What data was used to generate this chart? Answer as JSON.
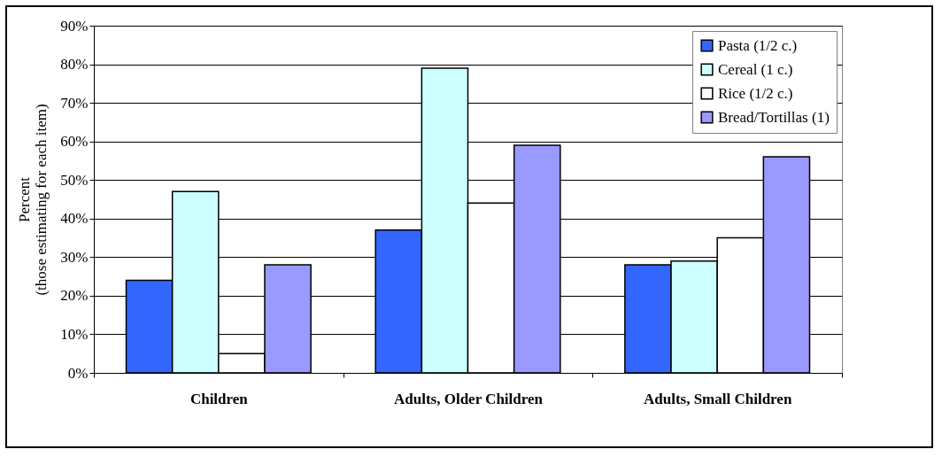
{
  "chart_data": {
    "type": "bar",
    "ylabel": "Percent\n(those estimating for each item)",
    "categories": [
      "Children",
      "Adults, Older Children",
      "Adults, Small Children"
    ],
    "series": [
      {
        "name": "Pasta (1/2 c.)",
        "color": "#3366ff",
        "values": [
          24,
          37,
          28
        ]
      },
      {
        "name": "Cereal (1 c.)",
        "color": "#ccffff",
        "values": [
          47,
          79,
          29
        ]
      },
      {
        "name": "Rice (1/2 c.)",
        "color": "#ffffff",
        "values": [
          5,
          44,
          35
        ]
      },
      {
        "name": "Bread/Tortillas (1)",
        "color": "#9999ff",
        "values": [
          28,
          59,
          56
        ]
      }
    ],
    "ylim": [
      0,
      90
    ],
    "yticks": [
      {
        "value": 0,
        "label": "0%"
      },
      {
        "value": 10,
        "label": "10%"
      },
      {
        "value": 20,
        "label": "20%"
      },
      {
        "value": 30,
        "label": "30%"
      },
      {
        "value": 40,
        "label": "40%"
      },
      {
        "value": 50,
        "label": "50%"
      },
      {
        "value": 60,
        "label": "60%"
      },
      {
        "value": 70,
        "label": "70%"
      },
      {
        "value": 80,
        "label": "80%"
      },
      {
        "value": 90,
        "label": "90%"
      }
    ],
    "grid": "y",
    "legend": "top right"
  }
}
